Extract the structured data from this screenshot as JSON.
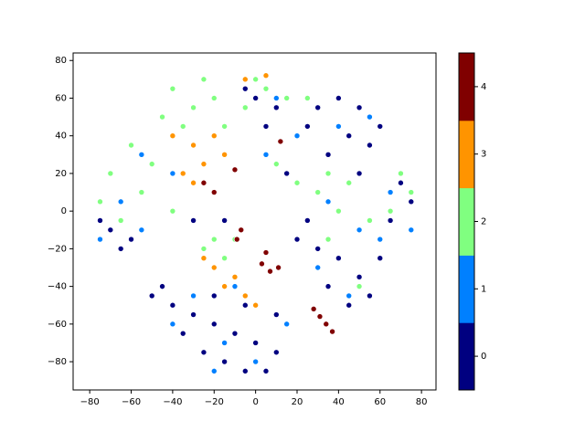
{
  "chart_data": {
    "type": "scatter",
    "xlim": [
      -88,
      87
    ],
    "ylim": [
      -95,
      84
    ],
    "xticks": [
      {
        "value": -80,
        "label": "−80"
      },
      {
        "value": -60,
        "label": "−60"
      },
      {
        "value": -40,
        "label": "−40"
      },
      {
        "value": -20,
        "label": "−20"
      },
      0,
      20,
      40,
      60,
      80
    ],
    "yticks": [
      {
        "value": -80,
        "label": "−80"
      },
      {
        "value": -60,
        "label": "−60"
      },
      {
        "value": -40,
        "label": "−40"
      },
      {
        "value": -20,
        "label": "−20"
      },
      0,
      20,
      40,
      60,
      80
    ],
    "colorbar": {
      "lim": [
        -0.5,
        4.5
      ],
      "ticks": [
        0,
        1,
        2,
        3,
        4
      ],
      "colors": [
        "#000080",
        "#0080ff",
        "#80ff80",
        "#ff9400",
        "#800000"
      ]
    },
    "series": [
      {
        "value": 0,
        "x": [
          -40,
          -30,
          -20,
          -10,
          0,
          10,
          -35,
          -25,
          -15,
          -5,
          5,
          -45,
          -20,
          -5,
          10,
          -50,
          -70,
          -65,
          -75,
          -60,
          30,
          40,
          50,
          25,
          45,
          55,
          35,
          60,
          50,
          70,
          75,
          65,
          20,
          30,
          40,
          50,
          35,
          55,
          45,
          25,
          60,
          0,
          5,
          10,
          -5,
          15,
          -15,
          -30
        ],
        "y": [
          -50,
          -55,
          -60,
          -65,
          -70,
          -75,
          -65,
          -75,
          -80,
          -85,
          -85,
          -40,
          -45,
          -50,
          -55,
          -45,
          -10,
          -20,
          -5,
          -15,
          55,
          60,
          55,
          45,
          40,
          35,
          30,
          45,
          20,
          15,
          5,
          -5,
          -15,
          -20,
          -25,
          -35,
          -40,
          -45,
          -50,
          -5,
          -25,
          60,
          45,
          55,
          65,
          20,
          -5,
          -5
        ]
      },
      {
        "value": 1,
        "x": [
          -30,
          -15,
          0,
          -40,
          -55,
          -75,
          -65,
          40,
          55,
          65,
          30,
          45,
          15,
          60,
          -40,
          -55,
          5,
          10,
          35,
          -10,
          20,
          75,
          -20,
          50
        ],
        "y": [
          -45,
          -70,
          -80,
          -60,
          -10,
          -15,
          5,
          45,
          50,
          10,
          -30,
          -45,
          -60,
          -15,
          20,
          30,
          30,
          60,
          5,
          -40,
          40,
          -10,
          -85,
          -10
        ]
      },
      {
        "value": 2,
        "x": [
          -40,
          -30,
          -20,
          -35,
          -15,
          -45,
          -25,
          -70,
          -60,
          -55,
          -75,
          -50,
          -65,
          0,
          5,
          15,
          -5,
          35,
          45,
          40,
          30,
          70,
          75,
          65,
          -20,
          -10,
          -15,
          -25,
          20,
          25,
          55,
          10,
          -40,
          35,
          50
        ],
        "y": [
          65,
          55,
          60,
          45,
          45,
          50,
          70,
          20,
          35,
          10,
          5,
          25,
          -5,
          70,
          65,
          60,
          55,
          20,
          15,
          0,
          10,
          20,
          10,
          0,
          -15,
          -15,
          -25,
          -20,
          15,
          60,
          -5,
          25,
          0,
          -15,
          -40
        ]
      },
      {
        "value": 3,
        "x": [
          -30,
          -25,
          -20,
          -30,
          -15,
          -35,
          -20,
          -10,
          -5,
          -15,
          0,
          -25,
          -5,
          5,
          -40
        ],
        "y": [
          35,
          25,
          40,
          15,
          30,
          20,
          -30,
          -35,
          -45,
          -40,
          -50,
          -25,
          70,
          72,
          40
        ]
      },
      {
        "value": 4,
        "x": [
          28,
          31,
          34,
          37,
          3,
          7,
          11,
          -7,
          -9,
          -20,
          -10,
          12,
          -25,
          5
        ],
        "y": [
          -52,
          -56,
          -60,
          -64,
          -28,
          -32,
          -30,
          -10,
          -15,
          10,
          22,
          37,
          15,
          -22
        ]
      }
    ]
  }
}
